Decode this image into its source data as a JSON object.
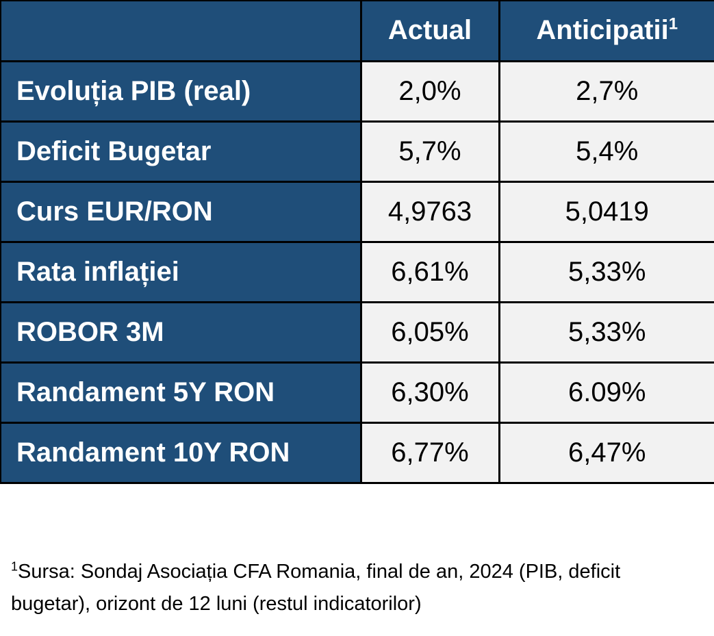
{
  "table": {
    "headers": {
      "label": "",
      "actual": "Actual",
      "anticipatii": "Anticipatii",
      "anticipatii_sup": "1"
    },
    "rows": [
      {
        "label": "Evoluția PIB (real)",
        "actual": "2,0%",
        "anticipatii": "2,7%"
      },
      {
        "label": "Deficit Bugetar",
        "actual": "5,7%",
        "anticipatii": "5,4%"
      },
      {
        "label": "Curs EUR/RON",
        "actual": "4,9763",
        "anticipatii": "5,0419"
      },
      {
        "label": "Rata inflației",
        "actual": "6,61%",
        "anticipatii": "5,33%"
      },
      {
        "label": "ROBOR 3M",
        "actual": "6,05%",
        "anticipatii": "5,33%"
      },
      {
        "label": "Randament 5Y RON",
        "actual": "6,30%",
        "anticipatii": "6.09%"
      },
      {
        "label": "Randament 10Y RON",
        "actual": "6,77%",
        "anticipatii": "6,47%"
      }
    ]
  },
  "footnote": {
    "sup": "1",
    "text": "Sursa: Sondaj Asociația CFA Romania, final de an, 2024 (PIB, deficit bugetar), orizont de 12 luni (restul indicatorilor)"
  },
  "colors": {
    "header_bg": "#1f4e79",
    "cell_bg": "#f2f2f2",
    "border": "#000000"
  }
}
